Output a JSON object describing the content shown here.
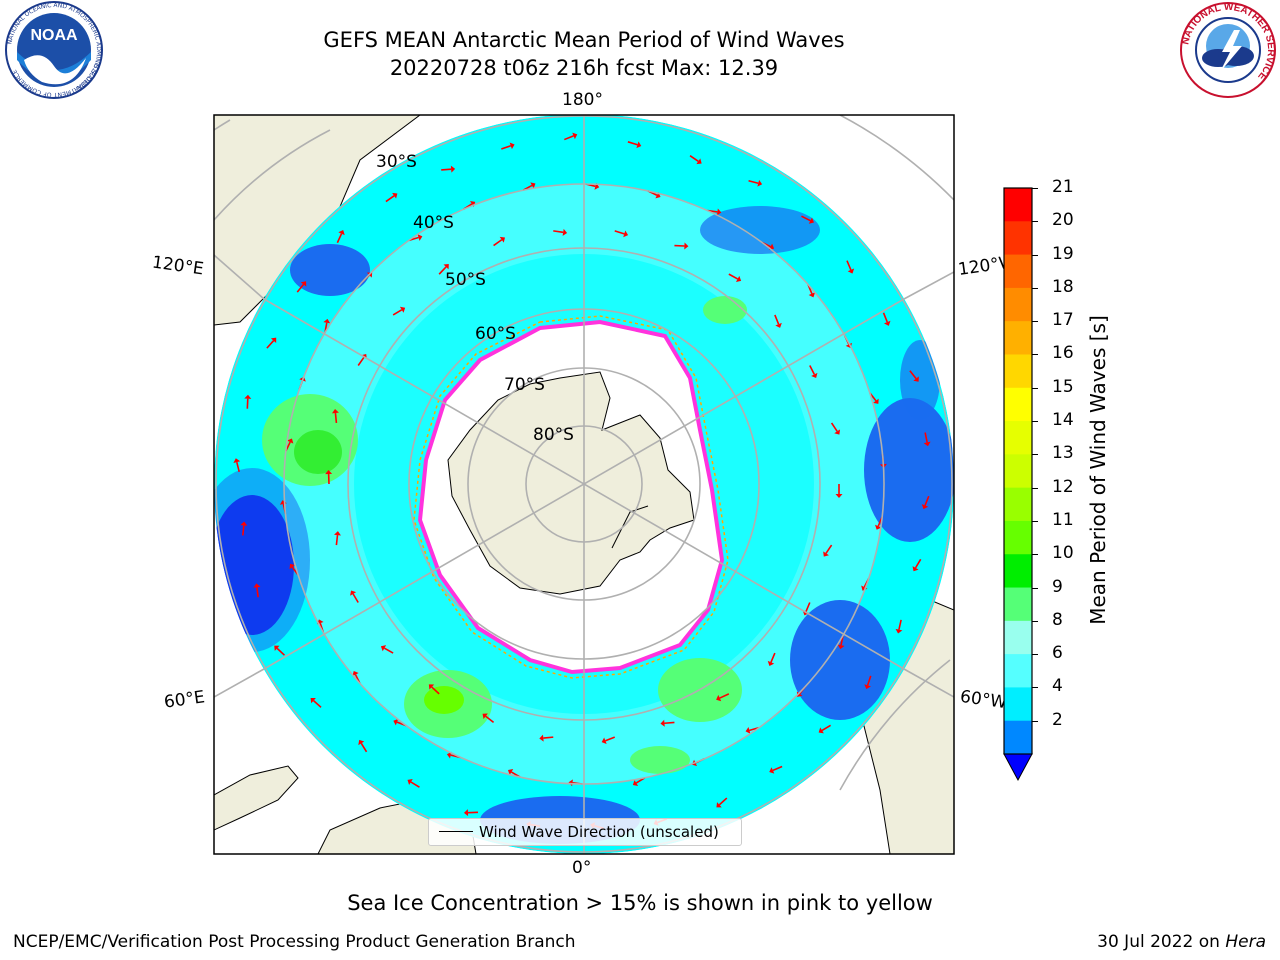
{
  "title_line1": "GEFS MEAN Antarctic Mean Period of Wind Waves",
  "title_line2": "20220728 t06z 216h fcst   Max: 12.39",
  "map": {
    "longitude_labels": {
      "top": "180°",
      "bottom": "0°",
      "upper_left": "120°E",
      "upper_right": "120°W",
      "lower_left": "60°E",
      "lower_right": "60°W"
    },
    "latitude_labels": [
      "30°S",
      "40°S",
      "50°S",
      "60°S",
      "70°S",
      "80°S"
    ],
    "legend_label": "Wind Wave Direction (unscaled)"
  },
  "colorbar": {
    "label": "Mean Period of Wind Waves [s]",
    "ticks": [
      "21",
      "20",
      "19",
      "18",
      "17",
      "16",
      "15",
      "14",
      "13",
      "12",
      "11",
      "10",
      "9",
      "8",
      "6",
      "4",
      "2"
    ],
    "colors": [
      "#ff0000",
      "#ff3300",
      "#ff6600",
      "#ff8c00",
      "#ffb000",
      "#ffd700",
      "#ffff00",
      "#e6ff00",
      "#ccff00",
      "#99ff00",
      "#66ff00",
      "#00ee00",
      "#55ff77",
      "#99ffee",
      "#55ffff",
      "#00eeff",
      "#0088ff"
    ],
    "extend_color": "#0000ff"
  },
  "caption": "Sea Ice Concentration > 15% is shown in pink to yellow",
  "footer_left": "NCEP/EMC/Verification Post Processing Product Generation Branch",
  "footer_date": "30 Jul 2022 on ",
  "footer_machine": "Hera",
  "logos": {
    "noaa_text": "NOAA",
    "noaa_ring": "NATIONAL OCEANIC AND ATMOSPHERIC ADMINISTRATION",
    "noaa_ring_bottom": "U.S. DEPARTMENT OF COMMERCE",
    "nws_ring": "NATIONAL WEATHER SERVICE"
  },
  "colors": {
    "ocean_base": "#00ffff",
    "ocean_deep": "#1a6cf0",
    "land": "#efeedc",
    "ice_edge": "#ff33dd",
    "arrow": "#ff0000"
  }
}
